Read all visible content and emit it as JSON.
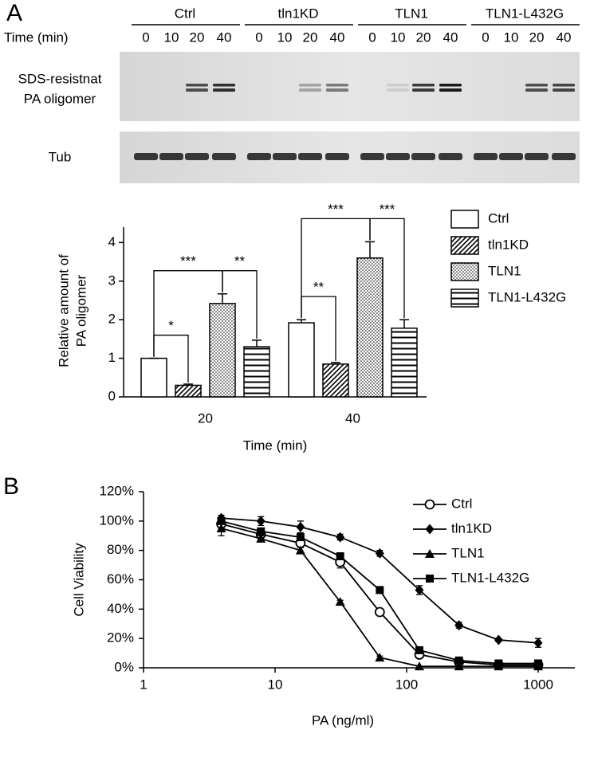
{
  "panel_a": {
    "label": "A",
    "blot": {
      "groups": [
        "Ctrl",
        "tln1KD",
        "TLN1",
        "TLN1-L432G"
      ],
      "time_label": "Time (min)",
      "times": [
        0,
        10,
        20,
        40
      ],
      "row_labels": [
        "SDS-resistnat",
        "PA oligomer",
        "Tub"
      ],
      "oligomer_intensity": [
        0,
        0,
        0.7,
        0.85,
        0,
        0,
        0.3,
        0.5,
        0,
        0.1,
        0.8,
        0.95,
        0,
        0,
        0.7,
        0.75
      ]
    }
  },
  "panel_b": {
    "label": "B"
  },
  "chart_data": [
    {
      "type": "bar",
      "y_label": [
        "Relative amount of",
        "PA oligomer"
      ],
      "x_label": "Time (min)",
      "categories": [
        "20",
        "40"
      ],
      "ylim": [
        0,
        4.4
      ],
      "yticks": [
        0,
        1,
        2,
        3,
        4
      ],
      "series": [
        {
          "name": "Ctrl",
          "color": "#000000",
          "pattern": "none",
          "values": [
            1.0,
            1.92
          ],
          "errors": [
            0,
            0.08
          ]
        },
        {
          "name": "tln1KD",
          "color": "#000000",
          "pattern": "diagonal",
          "values": [
            0.3,
            0.85
          ],
          "errors": [
            0.03,
            0.04
          ]
        },
        {
          "name": "TLN1",
          "color": "#000000",
          "pattern": "dots",
          "values": [
            2.42,
            3.6
          ],
          "errors": [
            0.25,
            0.42
          ]
        },
        {
          "name": "TLN1-L432G",
          "color": "#000000",
          "pattern": "horizontal",
          "values": [
            1.3,
            1.78
          ],
          "errors": [
            0.17,
            0.22
          ]
        }
      ],
      "significance": [
        {
          "category": "20",
          "pair": [
            "Ctrl",
            "tln1KD"
          ],
          "label": "*"
        },
        {
          "category": "20",
          "pair": [
            "Ctrl",
            "TLN1"
          ],
          "label": "***"
        },
        {
          "category": "20",
          "pair": [
            "TLN1",
            "TLN1-L432G"
          ],
          "label": "**"
        },
        {
          "category": "40",
          "pair": [
            "Ctrl",
            "tln1KD"
          ],
          "label": "**"
        },
        {
          "category": "40",
          "pair": [
            "Ctrl",
            "TLN1"
          ],
          "label": "***"
        },
        {
          "category": "40",
          "pair": [
            "TLN1",
            "TLN1-L432G"
          ],
          "label": "***"
        }
      ],
      "legend": "right"
    },
    {
      "type": "line",
      "y_label": "Cell Viability",
      "x_label": "PA (ng/ml)",
      "x_scale": "log",
      "x": [
        3.9,
        7.8,
        15.6,
        31.25,
        62.5,
        125,
        250,
        500,
        1000
      ],
      "xlim": [
        1,
        1900
      ],
      "xticks": [
        1,
        10,
        100,
        1000
      ],
      "ylim": [
        0,
        120
      ],
      "yticks": [
        {
          "value": 0,
          "label": "0%"
        },
        {
          "value": 20,
          "label": "20%"
        },
        {
          "value": 40,
          "label": "40%"
        },
        {
          "value": 60,
          "label": "60%"
        },
        {
          "value": 80,
          "label": "80%"
        },
        {
          "value": 100,
          "label": "100%"
        },
        {
          "value": 120,
          "label": "120%"
        }
      ],
      "series": [
        {
          "name": "Ctrl",
          "color": "#000000",
          "marker": "open-circle",
          "values": [
            98,
            91,
            85,
            72,
            38,
            9,
            4,
            2,
            2
          ],
          "errors": [
            3,
            3,
            3,
            4,
            2,
            1,
            1,
            1,
            1
          ]
        },
        {
          "name": "tln1KD",
          "color": "#000000",
          "marker": "diamond",
          "values": [
            102,
            100,
            96,
            89,
            78,
            53,
            29,
            19,
            17
          ],
          "errors": [
            2,
            3,
            4,
            2,
            2,
            3,
            2,
            1,
            3
          ]
        },
        {
          "name": "TLN1",
          "color": "#000000",
          "marker": "triangle",
          "values": [
            95,
            88,
            80,
            45,
            7,
            1,
            1,
            1,
            1
          ],
          "errors": [
            5,
            2,
            2,
            1,
            1,
            0,
            0,
            0,
            0
          ]
        },
        {
          "name": "TLN1-L432G",
          "color": "#000000",
          "marker": "square",
          "values": [
            100,
            93,
            89,
            76,
            53,
            12,
            5,
            3,
            3
          ],
          "errors": [
            2,
            2,
            2,
            2,
            1,
            1,
            1,
            1,
            1
          ]
        }
      ],
      "legend": "upper right"
    }
  ]
}
